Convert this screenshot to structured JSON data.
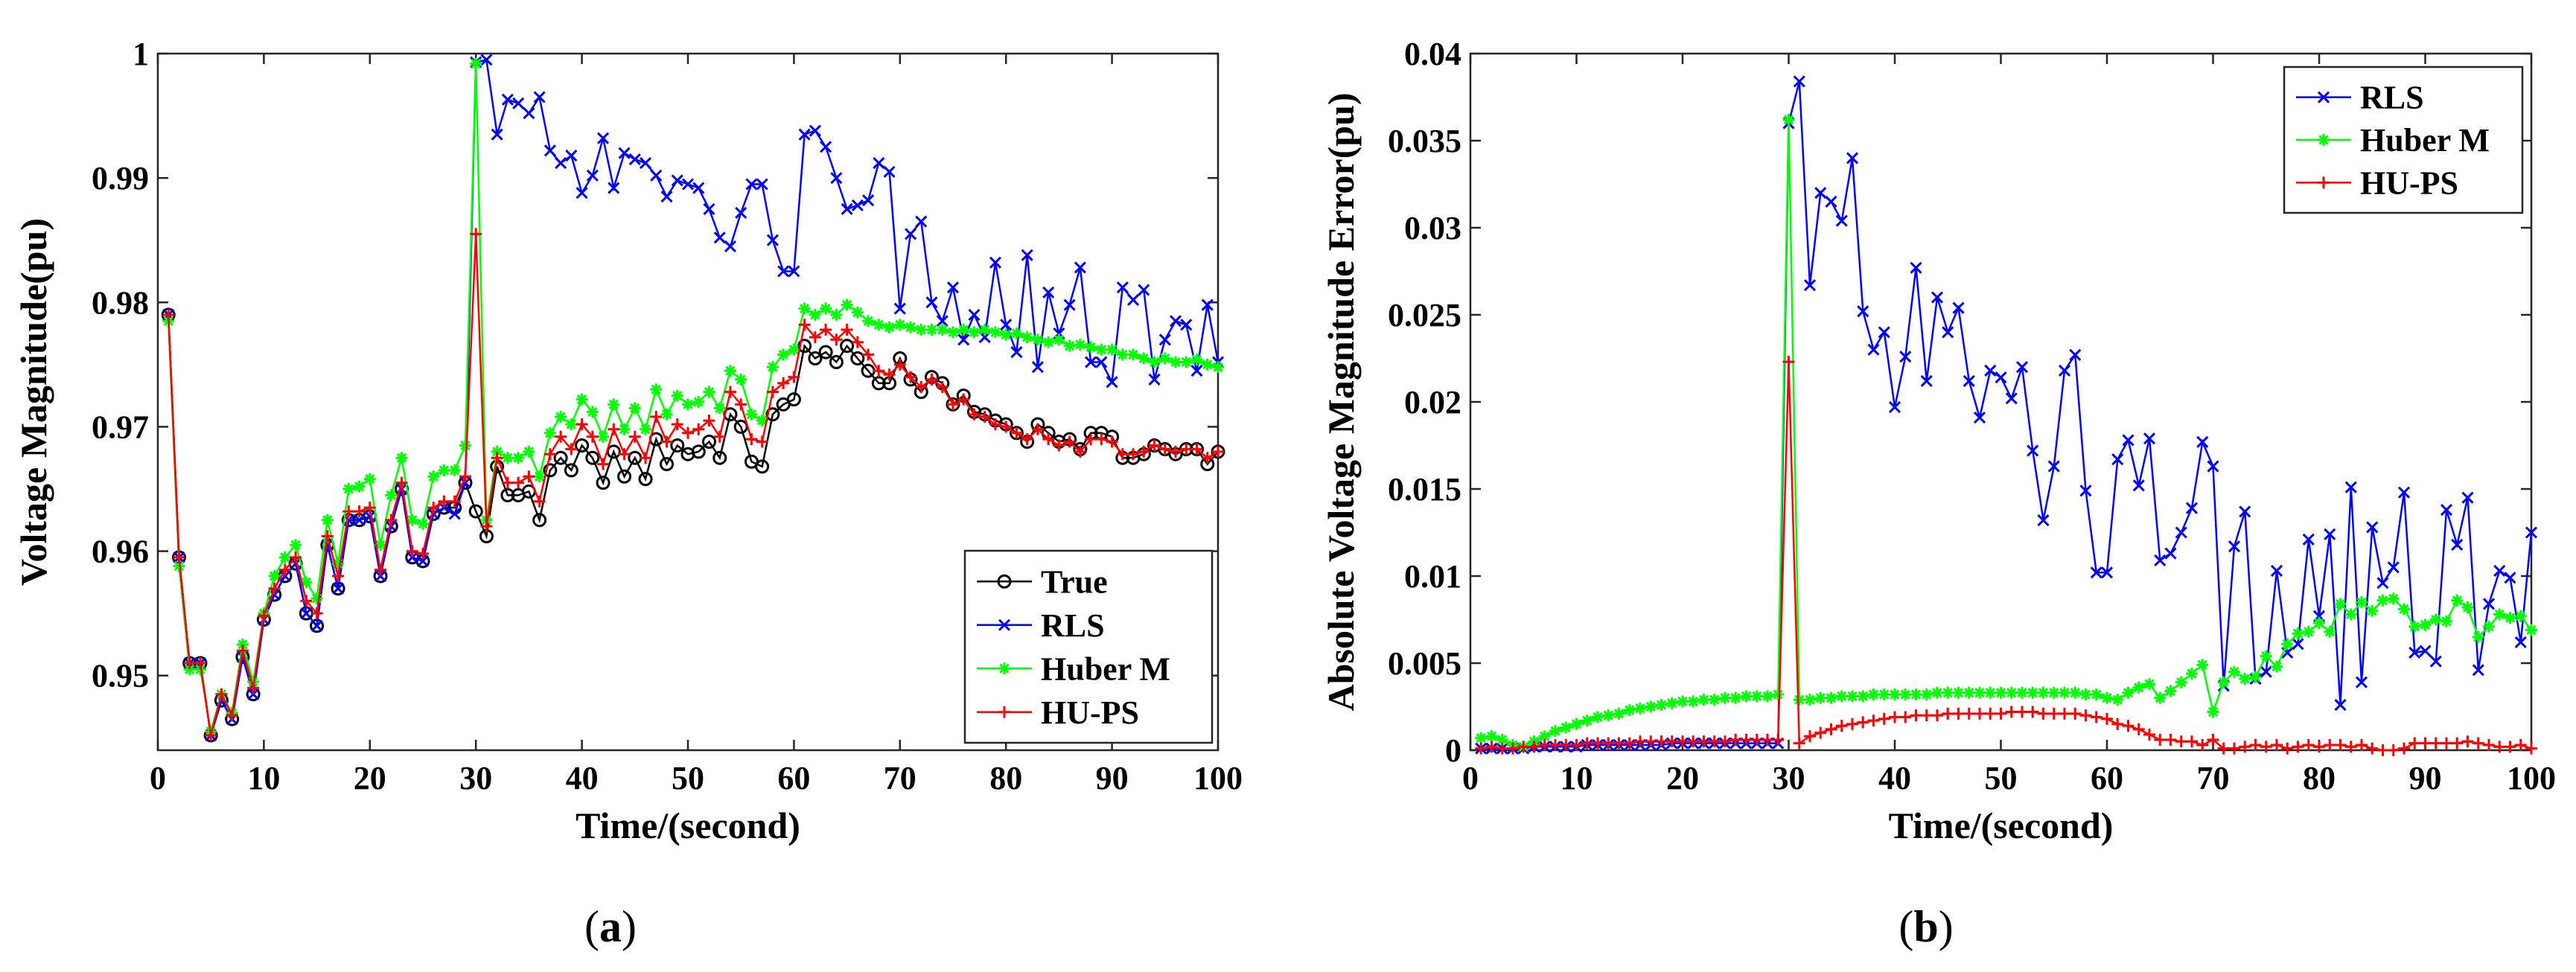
{
  "chart_data": [
    {
      "type": "line",
      "caption": "(a)",
      "caption_letter": "a",
      "xlabel": "Time/(second)",
      "ylabel": "Voltage Magnitude(pu)",
      "xlim": [
        0,
        100
      ],
      "ylim": [
        0.944,
        1.0
      ],
      "xticks": [
        0,
        10,
        20,
        30,
        40,
        50,
        60,
        70,
        80,
        90,
        100
      ],
      "yticks": [
        0.95,
        0.96,
        0.97,
        0.98,
        0.99,
        1
      ],
      "ytick_labels": [
        "0.95",
        "0.96",
        "0.97",
        "0.98",
        "0.99",
        "1"
      ],
      "legend_position": "bottom-right",
      "x": [
        1,
        2,
        3,
        4,
        5,
        6,
        7,
        8,
        9,
        10,
        11,
        12,
        13,
        14,
        15,
        16,
        17,
        18,
        19,
        20,
        21,
        22,
        23,
        24,
        25,
        26,
        27,
        28,
        29,
        30,
        31,
        32,
        33,
        34,
        35,
        36,
        37,
        38,
        39,
        40,
        41,
        42,
        43,
        44,
        45,
        46,
        47,
        48,
        49,
        50,
        51,
        52,
        53,
        54,
        55,
        56,
        57,
        58,
        59,
        60,
        61,
        62,
        63,
        64,
        65,
        66,
        67,
        68,
        69,
        70,
        71,
        72,
        73,
        74,
        75,
        76,
        77,
        78,
        79,
        80,
        81,
        82,
        83,
        84,
        85,
        86,
        87,
        88,
        89,
        90,
        91,
        92,
        93,
        94,
        95,
        96,
        97,
        98,
        99,
        100
      ],
      "series": [
        {
          "name": "True",
          "color": "#000000",
          "marker": "circle",
          "values": [
            0.979,
            0.9595,
            0.951,
            0.951,
            0.9452,
            0.948,
            0.9465,
            0.9515,
            0.9485,
            0.9545,
            0.9565,
            0.958,
            0.959,
            0.955,
            0.954,
            0.9605,
            0.957,
            0.9625,
            0.9625,
            0.9628,
            0.958,
            0.962,
            0.965,
            0.9595,
            0.9592,
            0.963,
            0.9635,
            0.9635,
            0.9655,
            0.9632,
            0.9612,
            0.9668,
            0.9645,
            0.9645,
            0.9648,
            0.9625,
            0.9665,
            0.9675,
            0.9665,
            0.9685,
            0.9675,
            0.9655,
            0.968,
            0.966,
            0.9675,
            0.9658,
            0.969,
            0.967,
            0.9685,
            0.9678,
            0.968,
            0.9688,
            0.9675,
            0.971,
            0.97,
            0.9672,
            0.9668,
            0.971,
            0.9718,
            0.9722,
            0.9765,
            0.9755,
            0.976,
            0.9752,
            0.9765,
            0.9755,
            0.9745,
            0.9735,
            0.9735,
            0.9755,
            0.9738,
            0.9728,
            0.974,
            0.9735,
            0.9718,
            0.9725,
            0.9712,
            0.971,
            0.9705,
            0.9702,
            0.9695,
            0.9688,
            0.9702,
            0.9695,
            0.9688,
            0.969,
            0.9682,
            0.9695,
            0.9695,
            0.9692,
            0.9675,
            0.9675,
            0.9678,
            0.9685,
            0.9682,
            0.9678,
            0.9682,
            0.9682,
            0.967,
            0.968
          ]
        },
        {
          "name": "RLS",
          "color": "#0000ff",
          "marker": "x",
          "values": [
            0.979,
            0.9595,
            0.951,
            0.951,
            0.9452,
            0.948,
            0.9465,
            0.9515,
            0.9485,
            0.9545,
            0.9565,
            0.958,
            0.959,
            0.955,
            0.954,
            0.9605,
            0.957,
            0.9625,
            0.9625,
            0.9628,
            0.958,
            0.962,
            0.965,
            0.9595,
            0.9592,
            0.963,
            0.9635,
            0.963,
            0.9655,
            0.9993,
            0.9995,
            0.9935,
            0.9963,
            0.996,
            0.9952,
            0.9965,
            0.9922,
            0.9912,
            0.9918,
            0.9888,
            0.9902,
            0.9932,
            0.9892,
            0.992,
            0.9915,
            0.9912,
            0.9902,
            0.9885,
            0.9898,
            0.9895,
            0.9892,
            0.9875,
            0.9852,
            0.9845,
            0.9872,
            0.9895,
            0.9895,
            0.985,
            0.9825,
            0.9825,
            0.9935,
            0.9938,
            0.9925,
            0.99,
            0.9875,
            0.9878,
            0.9882,
            0.9912,
            0.9905,
            0.9795,
            0.9855,
            0.9865,
            0.98,
            0.9785,
            0.9812,
            0.977,
            0.979,
            0.9772,
            0.9832,
            0.9782,
            0.976,
            0.9838,
            0.9748,
            0.9808,
            0.9775,
            0.9798,
            0.9828,
            0.9752,
            0.9752,
            0.9736,
            0.9812,
            0.9802,
            0.981,
            0.9738,
            0.977,
            0.9785,
            0.9782,
            0.9745,
            0.9798,
            0.9752
          ]
        },
        {
          "name": "Huber M",
          "color": "#00ff00",
          "marker": "star",
          "values": [
            0.9785,
            0.9588,
            0.9505,
            0.9505,
            0.9455,
            0.9485,
            0.947,
            0.9525,
            0.9495,
            0.955,
            0.958,
            0.9595,
            0.9605,
            0.9575,
            0.9562,
            0.9625,
            0.959,
            0.965,
            0.9652,
            0.9658,
            0.9605,
            0.9645,
            0.9675,
            0.9625,
            0.9622,
            0.966,
            0.9665,
            0.9665,
            0.9685,
            0.9992,
            0.9625,
            0.968,
            0.9675,
            0.9675,
            0.968,
            0.966,
            0.9695,
            0.9708,
            0.9702,
            0.9722,
            0.9712,
            0.9692,
            0.9718,
            0.9698,
            0.9715,
            0.9698,
            0.973,
            0.971,
            0.9725,
            0.9718,
            0.972,
            0.9728,
            0.9715,
            0.9745,
            0.9738,
            0.971,
            0.9705,
            0.9748,
            0.9758,
            0.9762,
            0.9795,
            0.979,
            0.9795,
            0.979,
            0.9798,
            0.9792,
            0.9785,
            0.9782,
            0.978,
            0.9782,
            0.978,
            0.9778,
            0.9778,
            0.9778,
            0.9776,
            0.9778,
            0.9776,
            0.9778,
            0.9776,
            0.9774,
            0.9775,
            0.9772,
            0.977,
            0.9768,
            0.977,
            0.9765,
            0.9766,
            0.9764,
            0.9762,
            0.9762,
            0.9758,
            0.9758,
            0.9755,
            0.9752,
            0.9755,
            0.9752,
            0.9752,
            0.9754,
            0.975,
            0.9748
          ]
        },
        {
          "name": "HU-PS",
          "color": "#ff0000",
          "marker": "plus",
          "values": [
            0.979,
            0.9595,
            0.951,
            0.951,
            0.9452,
            0.9485,
            0.9468,
            0.952,
            0.949,
            0.9548,
            0.957,
            0.9585,
            0.9595,
            0.956,
            0.955,
            0.9612,
            0.958,
            0.9632,
            0.9632,
            0.9635,
            0.9585,
            0.9625,
            0.9655,
            0.96,
            0.9598,
            0.9635,
            0.964,
            0.964,
            0.966,
            0.9855,
            0.962,
            0.9675,
            0.9655,
            0.9655,
            0.966,
            0.964,
            0.9678,
            0.9692,
            0.9682,
            0.9702,
            0.9692,
            0.967,
            0.9698,
            0.9678,
            0.9692,
            0.9675,
            0.9708,
            0.9688,
            0.9702,
            0.9695,
            0.9698,
            0.9705,
            0.9692,
            0.9728,
            0.9718,
            0.969,
            0.9688,
            0.9728,
            0.9735,
            0.974,
            0.9782,
            0.9772,
            0.9778,
            0.977,
            0.9778,
            0.9768,
            0.9758,
            0.9745,
            0.9742,
            0.975,
            0.974,
            0.9732,
            0.9738,
            0.9732,
            0.9718,
            0.9722,
            0.971,
            0.9708,
            0.9702,
            0.97,
            0.9695,
            0.969,
            0.9698,
            0.969,
            0.9685,
            0.9688,
            0.968,
            0.969,
            0.969,
            0.9688,
            0.9678,
            0.9678,
            0.968,
            0.9685,
            0.9682,
            0.968,
            0.9682,
            0.9682,
            0.9675,
            0.968
          ]
        }
      ]
    },
    {
      "type": "line",
      "caption": "(b)",
      "caption_letter": "b",
      "xlabel": "Time/(second)",
      "ylabel": "Absolute Voltage Magnitude Error(pu)",
      "xlim": [
        0,
        100
      ],
      "ylim": [
        0,
        0.04
      ],
      "xticks": [
        0,
        10,
        20,
        30,
        40,
        50,
        60,
        70,
        80,
        90,
        100
      ],
      "yticks": [
        0,
        0.005,
        0.01,
        0.015,
        0.02,
        0.025,
        0.03,
        0.035,
        0.04
      ],
      "ytick_labels": [
        "0",
        "0.005",
        "0.01",
        "0.015",
        "0.02",
        "0.025",
        "0.03",
        "0.035",
        "0.04"
      ],
      "legend_position": "top-right",
      "x": [
        1,
        2,
        3,
        4,
        5,
        6,
        7,
        8,
        9,
        10,
        11,
        12,
        13,
        14,
        15,
        16,
        17,
        18,
        19,
        20,
        21,
        22,
        23,
        24,
        25,
        26,
        27,
        28,
        29,
        30,
        31,
        32,
        33,
        34,
        35,
        36,
        37,
        38,
        39,
        40,
        41,
        42,
        43,
        44,
        45,
        46,
        47,
        48,
        49,
        50,
        51,
        52,
        53,
        54,
        55,
        56,
        57,
        58,
        59,
        60,
        61,
        62,
        63,
        64,
        65,
        66,
        67,
        68,
        69,
        70,
        71,
        72,
        73,
        74,
        75,
        76,
        77,
        78,
        79,
        80,
        81,
        82,
        83,
        84,
        85,
        86,
        87,
        88,
        89,
        90,
        91,
        92,
        93,
        94,
        95,
        96,
        97,
        98,
        99,
        100
      ],
      "series": [
        {
          "name": "RLS",
          "color": "#0000ff",
          "marker": "x",
          "values": [
            0.0001,
            0.0001,
            0.0001,
            0.0001,
            0.0001,
            0.0002,
            0.0002,
            0.0002,
            0.0002,
            0.0002,
            0.0003,
            0.0003,
            0.0003,
            0.0003,
            0.0003,
            0.0003,
            0.0003,
            0.0003,
            0.0004,
            0.0004,
            0.0004,
            0.0004,
            0.0004,
            0.0004,
            0.0004,
            0.0004,
            0.0004,
            0.0004,
            0.0004,
            0.036,
            0.0384,
            0.0267,
            0.032,
            0.0315,
            0.0304,
            0.034,
            0.0252,
            0.023,
            0.024,
            0.0197,
            0.0226,
            0.0277,
            0.0212,
            0.026,
            0.024,
            0.0254,
            0.0212,
            0.0191,
            0.0218,
            0.0214,
            0.0202,
            0.022,
            0.0172,
            0.0132,
            0.0163,
            0.0218,
            0.0227,
            0.0149,
            0.0102,
            0.0102,
            0.0167,
            0.0178,
            0.0152,
            0.0179,
            0.0109,
            0.0113,
            0.0125,
            0.0139,
            0.0177,
            0.0163,
            0.0037,
            0.0117,
            0.0137,
            0.0041,
            0.0045,
            0.0103,
            0.0056,
            0.0061,
            0.0121,
            0.0077,
            0.0124,
            0.0026,
            0.0151,
            0.0039,
            0.0128,
            0.0096,
            0.0105,
            0.0148,
            0.0056,
            0.0057,
            0.0051,
            0.0138,
            0.0118,
            0.0145,
            0.0046,
            0.0084,
            0.0103,
            0.0099,
            0.0062,
            0.0125
          ]
        },
        {
          "name": "Huber M",
          "color": "#00ff00",
          "marker": "star",
          "values": [
            0.0007,
            0.0008,
            0.0006,
            0.0003,
            0.0002,
            0.0005,
            0.0008,
            0.0011,
            0.0013,
            0.0015,
            0.0017,
            0.0019,
            0.002,
            0.0021,
            0.0023,
            0.0024,
            0.0025,
            0.0026,
            0.0027,
            0.0028,
            0.0028,
            0.0029,
            0.0029,
            0.003,
            0.003,
            0.0031,
            0.0031,
            0.0031,
            0.0032,
            0.0362,
            0.0029,
            0.0029,
            0.003,
            0.003,
            0.0031,
            0.0031,
            0.0031,
            0.0032,
            0.0032,
            0.0032,
            0.0032,
            0.0032,
            0.0032,
            0.0033,
            0.0033,
            0.0033,
            0.0033,
            0.0033,
            0.0033,
            0.0033,
            0.0033,
            0.0033,
            0.0033,
            0.0033,
            0.0033,
            0.0033,
            0.0033,
            0.0032,
            0.0032,
            0.003,
            0.0029,
            0.0033,
            0.0036,
            0.0038,
            0.003,
            0.0034,
            0.0039,
            0.0044,
            0.0049,
            0.0022,
            0.0039,
            0.0045,
            0.0041,
            0.0042,
            0.0054,
            0.0048,
            0.0061,
            0.0067,
            0.0068,
            0.0073,
            0.0068,
            0.0084,
            0.0078,
            0.0085,
            0.008,
            0.0086,
            0.0087,
            0.0081,
            0.0071,
            0.0072,
            0.0075,
            0.0074,
            0.0086,
            0.0082,
            0.0065,
            0.0071,
            0.0078,
            0.0076,
            0.0077,
            0.0069
          ]
        },
        {
          "name": "HU-PS",
          "color": "#ff0000",
          "marker": "plus",
          "values": [
            0.0001,
            0.0002,
            0.0001,
            0.0001,
            0.0002,
            0.0002,
            0.0003,
            0.0003,
            0.0003,
            0.0003,
            0.0004,
            0.0004,
            0.0004,
            0.0004,
            0.0004,
            0.0005,
            0.0005,
            0.0005,
            0.0005,
            0.0005,
            0.0005,
            0.0005,
            0.0005,
            0.0005,
            0.0006,
            0.0006,
            0.0006,
            0.0006,
            0.0006,
            0.0223,
            0.0004,
            0.0008,
            0.001,
            0.0012,
            0.0014,
            0.0015,
            0.0016,
            0.0017,
            0.0018,
            0.0019,
            0.0019,
            0.002,
            0.002,
            0.002,
            0.0021,
            0.0021,
            0.0021,
            0.0021,
            0.0021,
            0.0021,
            0.0022,
            0.0022,
            0.0022,
            0.0021,
            0.0021,
            0.0021,
            0.0021,
            0.002,
            0.0019,
            0.0018,
            0.0015,
            0.0014,
            0.0012,
            0.0009,
            0.0006,
            0.0006,
            0.0005,
            0.0005,
            0.0003,
            0.0006,
            0.0001,
            0.0001,
            0.0002,
            0.0003,
            0.0002,
            0.0003,
            0.0001,
            0.0002,
            0.0003,
            0.0002,
            0.0003,
            0.0003,
            0.0002,
            0.0003,
            0.0001,
            0.0,
            0.0,
            0.0001,
            0.0004,
            0.0004,
            0.0004,
            0.0004,
            0.0004,
            0.0005,
            0.0004,
            0.0003,
            0.0002,
            0.0002,
            0.0003,
            0.0001
          ]
        }
      ]
    }
  ]
}
